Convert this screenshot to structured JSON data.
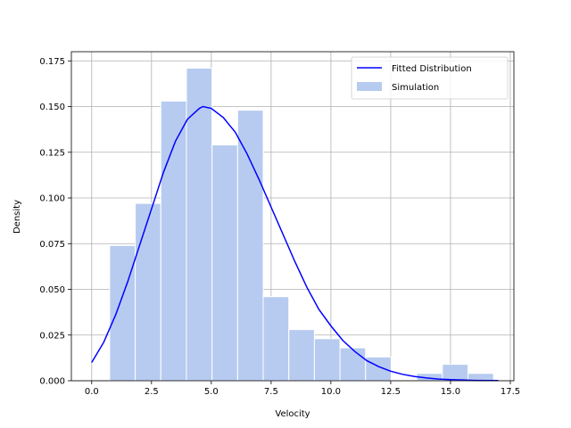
{
  "chart_data": {
    "type": "bar",
    "title": "",
    "xlabel": "Velocity",
    "ylabel": "Density",
    "xlim": [
      -0.85,
      17.65
    ],
    "ylim": [
      0,
      0.18
    ],
    "xticks": [
      0.0,
      2.5,
      5.0,
      7.5,
      10.0,
      12.5,
      15.0,
      17.5
    ],
    "xtick_labels": [
      "0.0",
      "2.5",
      "5.0",
      "7.5",
      "10.0",
      "12.5",
      "15.0",
      "17.5"
    ],
    "yticks": [
      0.0,
      0.025,
      0.05,
      0.075,
      0.1,
      0.125,
      0.15,
      0.175
    ],
    "ytick_labels": [
      "0.000",
      "0.025",
      "0.050",
      "0.075",
      "0.100",
      "0.125",
      "0.150",
      "0.175"
    ],
    "grid": true,
    "legend_position": "top-right",
    "bin_edges": [
      0.75,
      1.82,
      2.89,
      3.96,
      5.03,
      6.1,
      7.17,
      8.24,
      9.31,
      10.38,
      11.45,
      12.52,
      13.59,
      14.66,
      15.73,
      16.8
    ],
    "histogram": {
      "name": "Simulation",
      "color": "#b7cbf0",
      "values": [
        0.074,
        0.097,
        0.153,
        0.171,
        0.129,
        0.148,
        0.046,
        0.028,
        0.023,
        0.018,
        0.013,
        0.0,
        0.004,
        0.009,
        0.004
      ]
    },
    "fitted": {
      "name": "Fitted Distribution",
      "color": "#0000ff",
      "type": "line",
      "x": [
        0.0,
        0.5,
        1.0,
        1.5,
        2.0,
        2.5,
        3.0,
        3.5,
        4.0,
        4.5,
        4.65,
        5.0,
        5.5,
        6.0,
        6.5,
        7.0,
        7.5,
        8.0,
        8.5,
        9.0,
        9.5,
        10.0,
        10.5,
        11.0,
        11.5,
        12.0,
        12.5,
        13.0,
        13.5,
        14.0,
        14.5,
        15.0,
        15.5,
        16.0,
        16.5,
        17.0
      ],
      "y": [
        0.01,
        0.021,
        0.036,
        0.054,
        0.074,
        0.094,
        0.114,
        0.131,
        0.143,
        0.149,
        0.15,
        0.149,
        0.144,
        0.136,
        0.124,
        0.11,
        0.095,
        0.08,
        0.065,
        0.051,
        0.039,
        0.03,
        0.022,
        0.016,
        0.011,
        0.0077,
        0.0052,
        0.0035,
        0.0023,
        0.0015,
        0.0009,
        0.0006,
        0.0004,
        0.0002,
        0.0001,
        0.0001
      ]
    }
  }
}
